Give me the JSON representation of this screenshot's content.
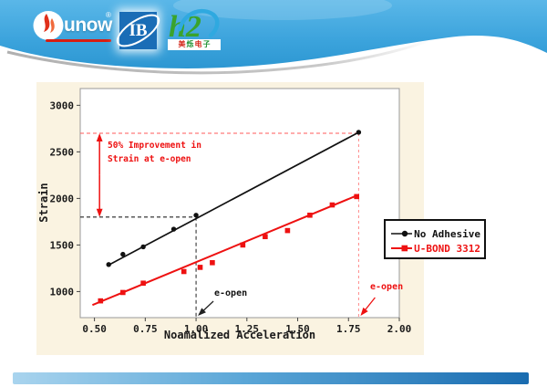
{
  "header": {
    "logos": [
      {
        "id": "sunow",
        "text": "unow",
        "reg": "®"
      },
      {
        "id": "ib",
        "text": "IB"
      },
      {
        "id": "h2",
        "text": "h2",
        "chars": [
          "美",
          "烁",
          "电",
          "子"
        ]
      }
    ]
  },
  "colors": {
    "header_blue_top": "#5ab7e8",
    "header_blue_bottom": "#2d97d2",
    "panel_bg": "#faf3e1",
    "series_black": "#111111",
    "series_red": "#ee1111",
    "bar_left": "#a9d4ee",
    "bar_right": "#1a6cb0"
  },
  "chart_data": {
    "type": "scatter",
    "title": "",
    "xlabel": "Noamalized Acceleration",
    "ylabel": "Strain",
    "xlim": [
      0.43,
      2.0
    ],
    "ylim": [
      720,
      3180
    ],
    "grid": false,
    "x_ticks": [
      {
        "v": 0.5,
        "label": "0.50"
      },
      {
        "v": 0.75,
        "label": "0.75"
      },
      {
        "v": 1.0,
        "label": "1.00"
      },
      {
        "v": 1.25,
        "label": "1.25"
      },
      {
        "v": 1.5,
        "label": "1.50"
      },
      {
        "v": 1.75,
        "label": "1.75"
      },
      {
        "v": 2.0,
        "label": "2.00"
      }
    ],
    "y_ticks": [
      {
        "v": 1000,
        "label": "1000"
      },
      {
        "v": 1500,
        "label": "1500"
      },
      {
        "v": 2000,
        "label": "2000"
      },
      {
        "v": 2500,
        "label": "2500"
      },
      {
        "v": 3000,
        "label": "3000"
      }
    ],
    "series": [
      {
        "name": "No Adhesive",
        "color": "#111111",
        "marker": "circle",
        "points": [
          [
            0.57,
            1290
          ],
          [
            0.64,
            1400
          ],
          [
            0.74,
            1480
          ],
          [
            0.89,
            1670
          ],
          [
            1.0,
            1820
          ],
          [
            1.8,
            2710
          ]
        ],
        "fit_line": {
          "x1": 0.57,
          "y1": 1285,
          "x2": 1.8,
          "y2": 2710
        }
      },
      {
        "name": "U-BOND 3312",
        "color": "#ee1111",
        "marker": "square",
        "points": [
          [
            0.53,
            900
          ],
          [
            0.64,
            990
          ],
          [
            0.74,
            1090
          ],
          [
            0.94,
            1215
          ],
          [
            1.02,
            1260
          ],
          [
            1.08,
            1310
          ],
          [
            1.23,
            1500
          ],
          [
            1.34,
            1590
          ],
          [
            1.45,
            1655
          ],
          [
            1.56,
            1820
          ],
          [
            1.67,
            1930
          ],
          [
            1.79,
            2020
          ]
        ],
        "fit_line": {
          "x1": 0.49,
          "y1": 855,
          "x2": 1.79,
          "y2": 2030
        }
      }
    ],
    "annotations": {
      "improvement_line1": "50% Improvement in",
      "improvement_line2": "Strain at e-open",
      "eopen_label": "e-open",
      "ref_strain_high": 2700,
      "ref_strain_low": 1800,
      "eopen_accel_no_adhesive": 1.0,
      "eopen_accel_ubond": 1.8,
      "arrow_x": 0.525
    },
    "legend_position": "outside-right-middle"
  }
}
